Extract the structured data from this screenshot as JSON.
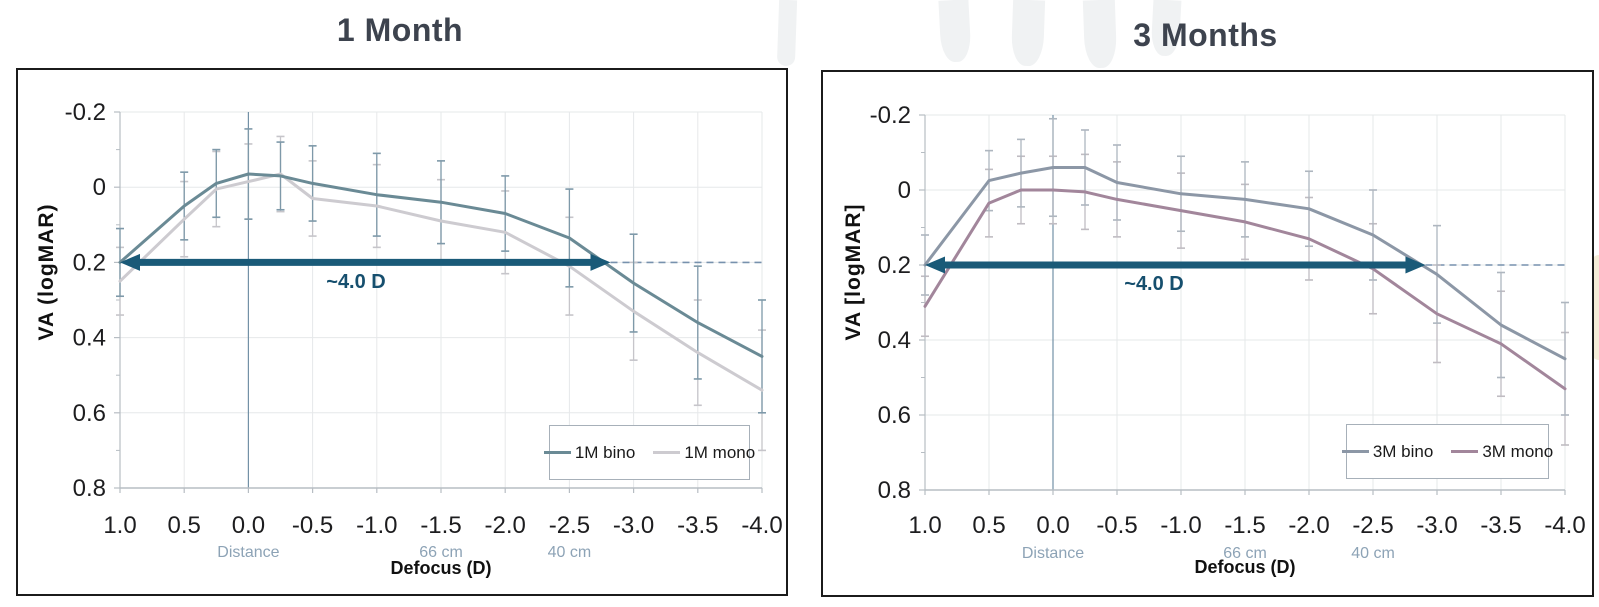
{
  "page": {
    "background": "#ffffff"
  },
  "palette": {
    "grid": "#e6e8ea",
    "axis": "#b7bdc3",
    "tick_label": "#1d1d1f",
    "secondary_label": "#8da3b6",
    "box_border": "#1b1b1b",
    "legend_border": "#a7b0b9",
    "title_color": "#3d434e",
    "watermark": "#f0f2f3",
    "watermark_cream": "#f5edd8"
  },
  "chart_data": [
    {
      "type": "line",
      "title": "1 Month",
      "ylabel": "VA (logMAR)",
      "xlabel": "Defocus (D)",
      "xlim": [
        1.0,
        -4.0
      ],
      "ylim": [
        -0.2,
        0.8
      ],
      "y_axis_inverted_values": true,
      "grid": true,
      "legend_position": "inside-bottom-right",
      "x_ticks": [
        "1.0",
        "0.5",
        "0.0",
        "-0.5",
        "-1.0",
        "-1.5",
        "-2.0",
        "-2.5",
        "-3.0",
        "-3.5",
        "-4.0"
      ],
      "y_ticks": [
        "-0.2",
        "0",
        "0.2",
        "0.4",
        "0.6",
        "0.8"
      ],
      "x": [
        1.0,
        0.5,
        0.25,
        0.0,
        -0.25,
        -0.5,
        -1.0,
        -1.5,
        -2.0,
        -2.5,
        -3.0,
        -3.5,
        -4.0
      ],
      "series": [
        {
          "name": "1M bino",
          "color": "#6a8a95",
          "error_color": "#7e99a9",
          "values": [
            0.2,
            0.05,
            -0.01,
            -0.035,
            -0.03,
            -0.01,
            0.02,
            0.04,
            0.07,
            0.135,
            0.255,
            0.36,
            0.45
          ],
          "error": [
            0.09,
            0.09,
            0.09,
            0.12,
            0.09,
            0.1,
            0.11,
            0.11,
            0.1,
            0.13,
            0.13,
            0.15,
            0.15
          ]
        },
        {
          "name": "1M mono",
          "color": "#cdcbd0",
          "error_color": "#c6c5ca",
          "values": [
            0.25,
            0.085,
            0.005,
            -0.015,
            -0.035,
            0.03,
            0.05,
            0.09,
            0.12,
            0.21,
            0.33,
            0.44,
            0.54
          ],
          "error": [
            0.09,
            0.1,
            0.1,
            0.1,
            0.1,
            0.1,
            0.11,
            0.11,
            0.11,
            0.13,
            0.13,
            0.14,
            0.16
          ]
        }
      ],
      "reference_line": {
        "x": 0.0,
        "color": "#7391a6"
      },
      "distance_labels": [
        {
          "text": "Distance",
          "x": 0.0
        },
        {
          "text": "66 cm",
          "x": -1.5
        },
        {
          "text": "40 cm",
          "x": -2.5
        }
      ],
      "annotation": {
        "label": "~4.0 D",
        "y": 0.2,
        "x_from": 1.0,
        "x_to": -2.82,
        "dashed_to": -4.0,
        "color": "#1a5a78",
        "dashed_color": "#7791ad"
      }
    },
    {
      "type": "line",
      "title": "3 Months",
      "ylabel": "VA [logMAR]",
      "xlabel": "Defocus (D)",
      "xlim": [
        1.0,
        -4.0
      ],
      "ylim": [
        -0.2,
        0.8
      ],
      "y_axis_inverted_values": true,
      "grid": true,
      "legend_position": "inside-bottom-right",
      "x_ticks": [
        "1.0",
        "0.5",
        "0.0",
        "-0.5",
        "-1.0",
        "-1.5",
        "-2.0",
        "-2.5",
        "-3.0",
        "-3.5",
        "-4.0"
      ],
      "y_ticks": [
        "-0.2",
        "0",
        "0.2",
        "0.4",
        "0.6",
        "0.8"
      ],
      "x": [
        1.0,
        0.5,
        0.25,
        0.0,
        -0.25,
        -0.5,
        -1.0,
        -1.5,
        -2.0,
        -2.5,
        -3.0,
        -3.5,
        -4.0
      ],
      "series": [
        {
          "name": "3M bino",
          "color": "#8c97a6",
          "error_color": "#aeb6bf",
          "values": [
            0.2,
            -0.025,
            -0.045,
            -0.06,
            -0.06,
            -0.02,
            0.01,
            0.025,
            0.05,
            0.12,
            0.225,
            0.36,
            0.45
          ],
          "error": [
            0.08,
            0.08,
            0.09,
            0.13,
            0.1,
            0.1,
            0.1,
            0.1,
            0.1,
            0.12,
            0.13,
            0.14,
            0.15
          ]
        },
        {
          "name": "3M mono",
          "color": "#a2869b",
          "error_color": "#c0bcc2",
          "values": [
            0.31,
            0.035,
            0.0,
            0.0,
            0.005,
            0.025,
            0.055,
            0.085,
            0.13,
            0.21,
            0.33,
            0.41,
            0.53
          ],
          "error": [
            0.08,
            0.09,
            0.09,
            0.09,
            0.1,
            0.1,
            0.1,
            0.1,
            0.11,
            0.12,
            0.13,
            0.14,
            0.15
          ]
        }
      ],
      "reference_line": {
        "x": 0.0,
        "color": "#7391a6"
      },
      "distance_labels": [
        {
          "text": "Distance",
          "x": 0.0
        },
        {
          "text": "66 cm",
          "x": -1.5
        },
        {
          "text": "40 cm",
          "x": -2.5
        }
      ],
      "annotation": {
        "label": "~4.0 D",
        "y": 0.2,
        "x_from": 1.0,
        "x_to": -2.91,
        "dashed_to": -4.0,
        "color": "#1a5a78",
        "dashed_color": "#7791ad"
      }
    }
  ]
}
